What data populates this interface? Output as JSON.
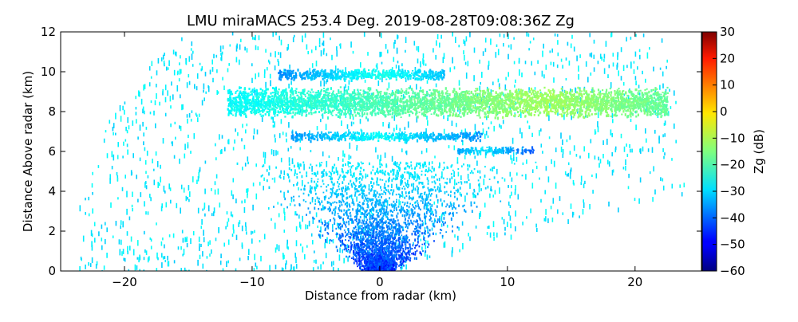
{
  "chart_data": {
    "type": "heatmap",
    "title": "LMU miraMACS 253.4 Deg. 2019-08-28T09:08:36Z  Zg",
    "xlabel": "Distance from radar (km)",
    "ylabel": "Distance Above radar  (km)",
    "xlim": [
      -25,
      25.2
    ],
    "ylim": [
      0,
      12
    ],
    "x_ticks": [
      -20,
      -10,
      0,
      10,
      20
    ],
    "y_ticks": [
      0,
      2,
      4,
      6,
      8,
      10,
      12
    ],
    "colorbar": {
      "label": "Zg (dB)",
      "range": [
        -60,
        30
      ],
      "ticks": [
        30,
        20,
        10,
        0,
        -10,
        -20,
        -30,
        -40,
        -50,
        -60
      ],
      "colormap": "jet"
    },
    "scan_extent": {
      "left_edge_x_km": [
        -24.0,
        -23.5,
        -21.0,
        -17.5,
        -15.5
      ],
      "left_edge_y_km": [
        0.0,
        4.0,
        8.0,
        11.0,
        12.0
      ],
      "right_edge_x_km": [
        22.0,
        22.8,
        23.4,
        23.6,
        24.0
      ],
      "right_edge_y_km": [
        12.0,
        10.0,
        8.0,
        6.0,
        4.0
      ],
      "bottom_edge_x_km": [
        0.5,
        12.0,
        24.0
      ],
      "bottom_edge_y_km": [
        0.0,
        2.1,
        4.0
      ]
    },
    "features": [
      {
        "name": "cloud layer upper",
        "x_start_km": -12,
        "x_end_km": 22.5,
        "y_km": 8.5,
        "thickness_km": 1.3,
        "peak_x_km": 13,
        "peak_dBz": -10
      },
      {
        "name": "cloud layer top",
        "x_start_km": -8,
        "x_end_km": 5,
        "y_km": 9.9,
        "thickness_km": 0.5,
        "peak_x_km": 0,
        "peak_dBz": -22
      },
      {
        "name": "cloud layer middle",
        "x_start_km": -7,
        "x_end_km": 8,
        "y_km": 6.8,
        "thickness_km": 0.4,
        "peak_x_km": 0,
        "peak_dBz": -24
      },
      {
        "name": "cloud layer lower",
        "x_start_km": 6,
        "x_end_km": 12,
        "y_km": 6.1,
        "thickness_km": 0.3,
        "peak_x_km": 8,
        "peak_dBz": -26
      },
      {
        "name": "near-radar clutter",
        "x_center_km": 0,
        "y_km": 0.6,
        "spread_x_km": 4.5,
        "spread_y_km": 2.5,
        "min_dBz": -50
      }
    ],
    "background_dBz": -28
  }
}
